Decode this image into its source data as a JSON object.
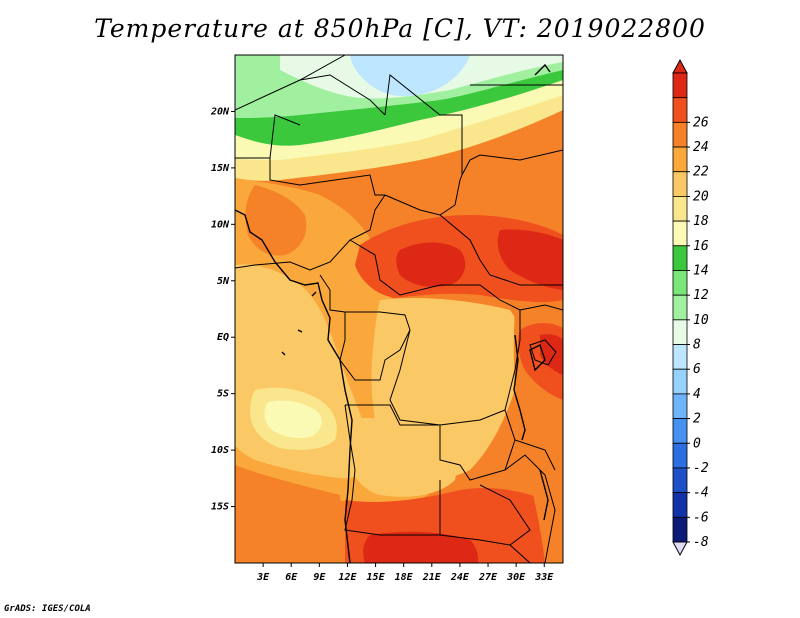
{
  "title": "Temperature at 850hPa [C], VT: 2019022800",
  "credit": "GrADS: IGES/COLA",
  "map": {
    "lon_range": [
      0,
      35
    ],
    "lat_range": [
      -20,
      25
    ],
    "x_ticks": [
      {
        "lon": 3,
        "label": "3E"
      },
      {
        "lon": 6,
        "label": "6E"
      },
      {
        "lon": 9,
        "label": "9E"
      },
      {
        "lon": 12,
        "label": "12E"
      },
      {
        "lon": 15,
        "label": "15E"
      },
      {
        "lon": 18,
        "label": "18E"
      },
      {
        "lon": 21,
        "label": "21E"
      },
      {
        "lon": 24,
        "label": "24E"
      },
      {
        "lon": 27,
        "label": "27E"
      },
      {
        "lon": 30,
        "label": "30E"
      },
      {
        "lon": 33,
        "label": "33E"
      }
    ],
    "y_ticks": [
      {
        "lat": 20,
        "label": "20N"
      },
      {
        "lat": 15,
        "label": "15N"
      },
      {
        "lat": 10,
        "label": "10N"
      },
      {
        "lat": 5,
        "label": "5N"
      },
      {
        "lat": 0,
        "label": "EQ"
      },
      {
        "lat": -5,
        "label": "5S"
      },
      {
        "lat": -10,
        "label": "10S"
      },
      {
        "lat": -15,
        "label": "15S"
      }
    ]
  },
  "colorbar": {
    "levels": [
      -8,
      -6,
      -4,
      -2,
      0,
      2,
      4,
      6,
      8,
      10,
      12,
      14,
      16,
      18,
      20,
      22,
      24,
      26
    ],
    "labels": [
      "-8",
      "-6",
      "-4",
      "-2",
      "0",
      "2",
      "4",
      "6",
      "8",
      "10",
      "12",
      "14",
      "16",
      "18",
      "20",
      "22",
      "24",
      "26"
    ],
    "colors": [
      "#0c1a78",
      "#1432a8",
      "#1e50c8",
      "#2d6ee0",
      "#4690f0",
      "#6eb4fa",
      "#96d2fc",
      "#bee6fe",
      "#e6fae6",
      "#a0f0a0",
      "#78e678",
      "#3cc83c",
      "#fafab4",
      "#fae68c",
      "#fac864",
      "#faa73c",
      "#f58228",
      "#f0501e",
      "#dc2814"
    ],
    "under_color": "#e0dcf5",
    "over_color": "#dc2814"
  },
  "colors": {
    "border": "#000000",
    "background": "#ffffff"
  }
}
